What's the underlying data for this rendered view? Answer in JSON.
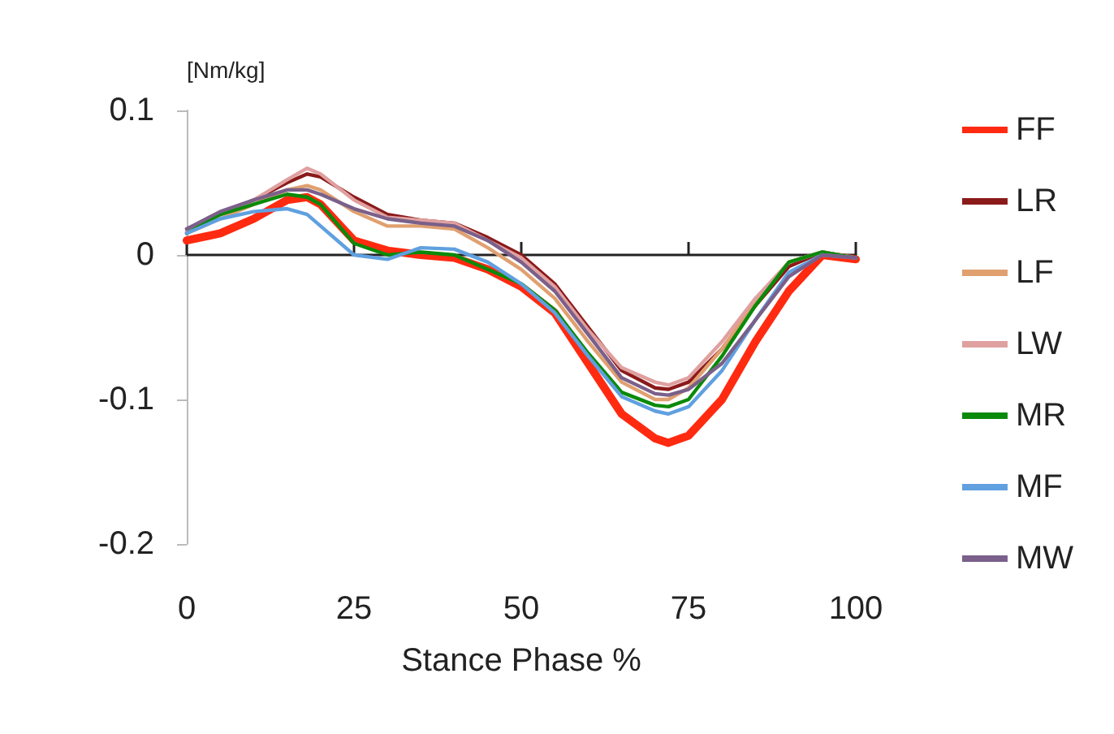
{
  "chart_data": {
    "type": "line",
    "xlabel": "Stance Phase %",
    "ylabel": "[Nm/kg]",
    "x": [
      0,
      5,
      10,
      15,
      18,
      20,
      25,
      30,
      35,
      40,
      45,
      50,
      55,
      60,
      65,
      70,
      72,
      75,
      80,
      85,
      90,
      95,
      100
    ],
    "xlim": [
      0,
      100
    ],
    "xticks": [
      0,
      25,
      50,
      75,
      100
    ],
    "ylim": [
      -0.2,
      0.1
    ],
    "yticks": [
      -0.2,
      -0.1,
      0,
      0.1
    ],
    "legend": "right",
    "marker": "none",
    "line_style": "solid",
    "series": [
      {
        "name": "FF",
        "color": "#ff2a10",
        "values": [
          0.01,
          0.015,
          0.025,
          0.038,
          0.04,
          0.035,
          0.01,
          0.003,
          0.0,
          -0.002,
          -0.01,
          -0.022,
          -0.04,
          -0.075,
          -0.11,
          -0.127,
          -0.13,
          -0.125,
          -0.1,
          -0.06,
          -0.025,
          0.0,
          -0.003
        ]
      },
      {
        "name": "LR",
        "color": "#8b1a1a",
        "values": [
          0.018,
          0.028,
          0.038,
          0.05,
          0.056,
          0.054,
          0.04,
          0.028,
          0.024,
          0.022,
          0.012,
          0.0,
          -0.02,
          -0.05,
          -0.08,
          -0.092,
          -0.093,
          -0.088,
          -0.065,
          -0.035,
          -0.008,
          0.002,
          -0.002
        ]
      },
      {
        "name": "LF",
        "color": "#e0a070",
        "values": [
          0.015,
          0.025,
          0.035,
          0.045,
          0.048,
          0.045,
          0.03,
          0.02,
          0.02,
          0.018,
          0.005,
          -0.01,
          -0.03,
          -0.06,
          -0.088,
          -0.1,
          -0.1,
          -0.092,
          -0.065,
          -0.032,
          -0.005,
          0.002,
          -0.002
        ]
      },
      {
        "name": "LW",
        "color": "#e0a0a0",
        "values": [
          0.016,
          0.028,
          0.038,
          0.052,
          0.06,
          0.056,
          0.038,
          0.026,
          0.024,
          0.022,
          0.01,
          -0.002,
          -0.022,
          -0.052,
          -0.078,
          -0.088,
          -0.09,
          -0.085,
          -0.06,
          -0.03,
          -0.005,
          0.002,
          -0.002
        ]
      },
      {
        "name": "MR",
        "color": "#0a8a0a",
        "values": [
          0.015,
          0.028,
          0.035,
          0.042,
          0.04,
          0.035,
          0.008,
          0.0,
          0.002,
          0.0,
          -0.01,
          -0.02,
          -0.038,
          -0.068,
          -0.095,
          -0.104,
          -0.105,
          -0.1,
          -0.07,
          -0.035,
          -0.005,
          0.002,
          -0.002
        ]
      },
      {
        "name": "MF",
        "color": "#60a0e0",
        "values": [
          0.015,
          0.025,
          0.03,
          0.032,
          0.028,
          0.02,
          0.0,
          -0.003,
          0.005,
          0.004,
          -0.005,
          -0.02,
          -0.04,
          -0.07,
          -0.098,
          -0.108,
          -0.11,
          -0.105,
          -0.08,
          -0.045,
          -0.012,
          0.0,
          -0.002
        ]
      },
      {
        "name": "MW",
        "color": "#7a608a",
        "values": [
          0.018,
          0.03,
          0.038,
          0.045,
          0.045,
          0.042,
          0.032,
          0.025,
          0.022,
          0.02,
          0.01,
          -0.005,
          -0.025,
          -0.055,
          -0.085,
          -0.096,
          -0.097,
          -0.093,
          -0.075,
          -0.045,
          -0.015,
          0.0,
          -0.002
        ]
      }
    ]
  }
}
